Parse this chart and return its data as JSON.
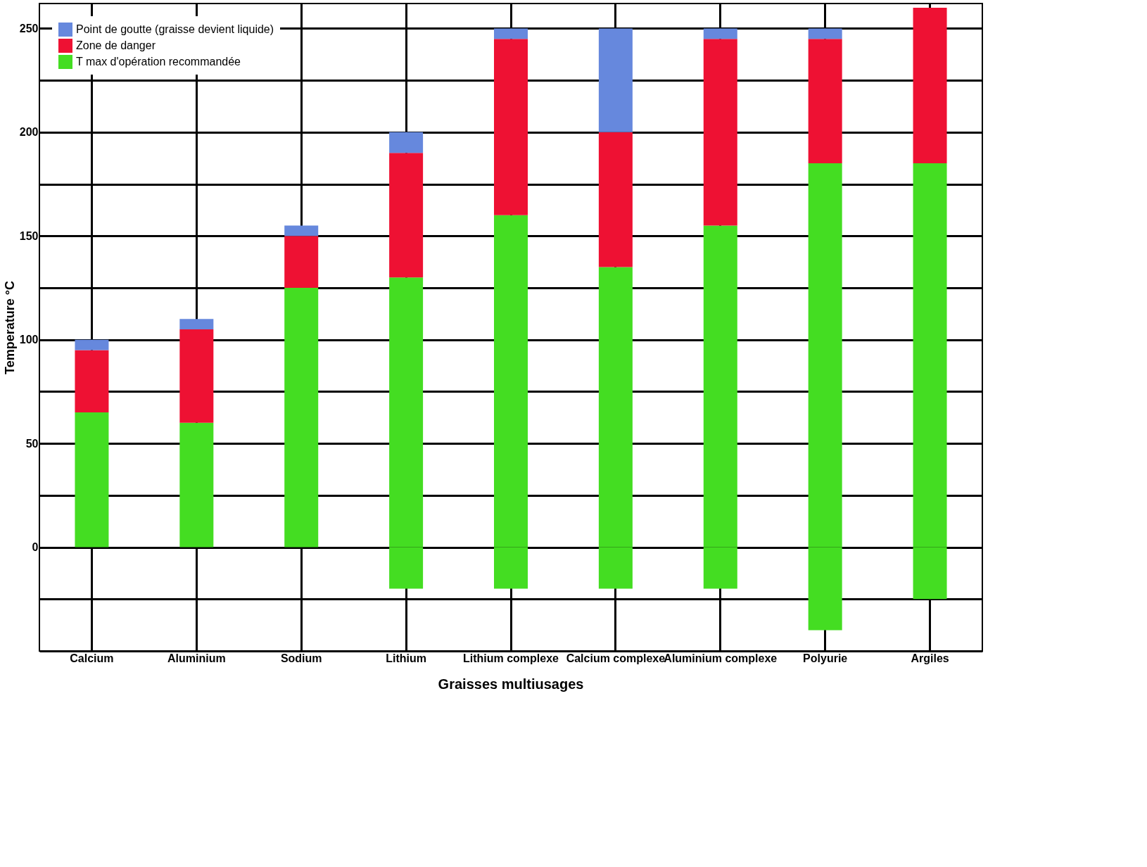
{
  "chart_data": {
    "type": "bar",
    "stacked": true,
    "ylabel": "Temperature °C",
    "categories": [
      "Calcium",
      "Aluminium",
      "Sodium",
      "Lithium",
      "Lithium complexe",
      "Calcium complexe",
      "Aluminium complexe",
      "Polyurie",
      "Argiles"
    ],
    "series": [
      {
        "name": "T max d'opération recommandée",
        "color": "#44dd22",
        "values": [
          65,
          60,
          125,
          130,
          160,
          135,
          155,
          185,
          185
        ]
      },
      {
        "name": "Zone de danger",
        "color": "#ee1133",
        "values": [
          30,
          45,
          25,
          60,
          85,
          65,
          90,
          60,
          75
        ]
      },
      {
        "name": "Point de goutte (graisse devient liquide)",
        "color": "#6688dd",
        "values": [
          5,
          5,
          5,
          10,
          5,
          50,
          5,
          5,
          null
        ]
      },
      {
        "color": "#44dd22",
        "values": [
          null,
          null,
          null,
          -20,
          -20,
          -20,
          -20,
          -40,
          -25
        ]
      }
    ],
    "ylim": [
      -50,
      262
    ],
    "yticks": [
      {
        "value": -50,
        "label": null
      },
      {
        "value": -25,
        "label": null
      },
      0,
      {
        "value": 25,
        "label": null
      },
      50,
      {
        "value": 75,
        "label": null
      },
      100,
      {
        "value": 125,
        "label": null
      },
      150,
      {
        "value": 175,
        "label": null
      },
      200,
      {
        "value": 225,
        "label": null
      },
      250
    ],
    "grid": true,
    "legend": "top left",
    "annotations": [
      "Graisses multiusages"
    ]
  }
}
